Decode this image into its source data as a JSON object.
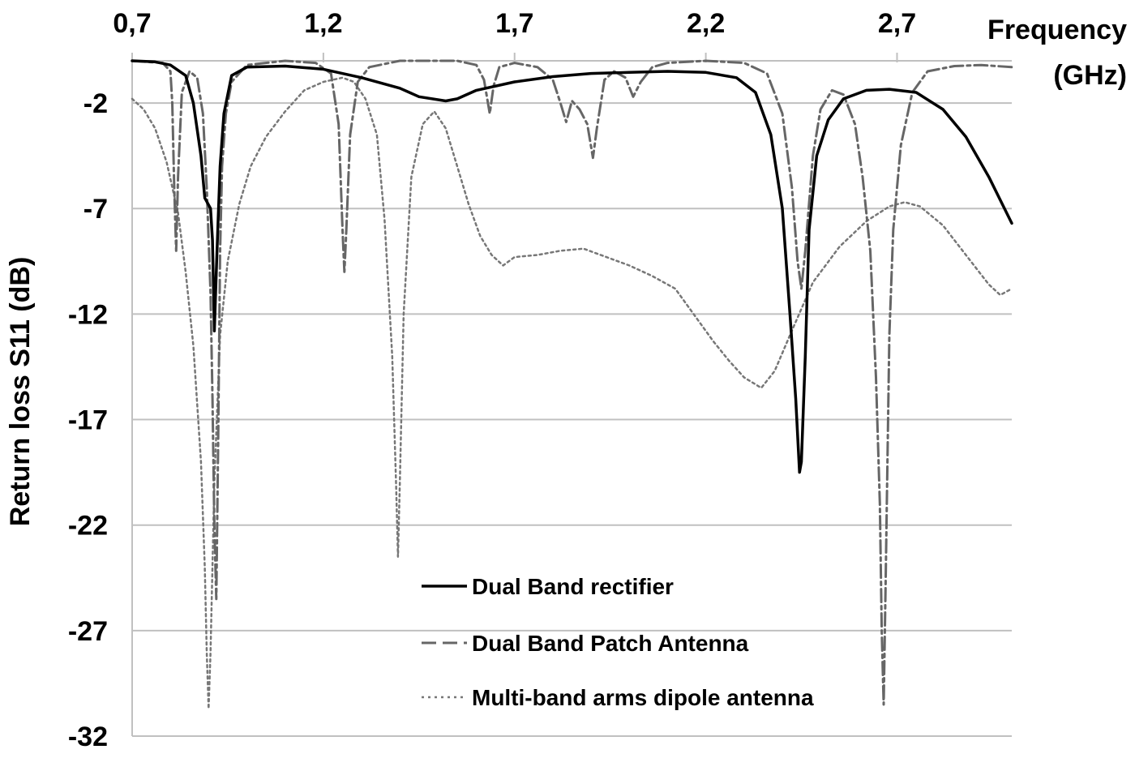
{
  "chart_data": {
    "type": "line",
    "xlabel": [
      "Frequency",
      "(GHz)"
    ],
    "ylabel": "Return loss S11 (dB)",
    "xlim": [
      0.7,
      3.0
    ],
    "ylim": [
      -32,
      0
    ],
    "x_ticks": [
      0.7,
      1.2,
      1.7,
      2.2,
      2.7
    ],
    "x_tick_labels": [
      "0,7",
      "1,2",
      "1,7",
      "2,2",
      "2,7"
    ],
    "y_ticks": [
      -2,
      -7,
      -12,
      -17,
      -22,
      -27,
      -32
    ],
    "y_tick_labels": [
      "-2",
      "-7",
      "-12",
      "-17",
      "-22",
      "-27",
      "-32"
    ],
    "x_axis_position": "top",
    "grid": "horizontal",
    "legend_position": "bottom-center",
    "colors": {
      "rectifier": "#000000",
      "patch": "#666666",
      "dipole": "#777777",
      "grid": "#c0c0c0"
    },
    "series": [
      {
        "name": "Dual Band rectifier",
        "style": "solid",
        "points": [
          [
            0.7,
            0
          ],
          [
            0.76,
            -0.05
          ],
          [
            0.8,
            -0.2
          ],
          [
            0.84,
            -0.7
          ],
          [
            0.86,
            -2.0
          ],
          [
            0.88,
            -4.5
          ],
          [
            0.89,
            -6.5
          ],
          [
            0.905,
            -7.0
          ],
          [
            0.91,
            -8.5
          ],
          [
            0.915,
            -12.8
          ],
          [
            0.92,
            -10
          ],
          [
            0.925,
            -7.5
          ],
          [
            0.93,
            -5
          ],
          [
            0.94,
            -2.5
          ],
          [
            0.96,
            -0.7
          ],
          [
            1.0,
            -0.3
          ],
          [
            1.1,
            -0.25
          ],
          [
            1.2,
            -0.4
          ],
          [
            1.3,
            -0.8
          ],
          [
            1.4,
            -1.3
          ],
          [
            1.45,
            -1.7
          ],
          [
            1.52,
            -1.9
          ],
          [
            1.55,
            -1.8
          ],
          [
            1.6,
            -1.4
          ],
          [
            1.7,
            -1.0
          ],
          [
            1.8,
            -0.75
          ],
          [
            1.9,
            -0.6
          ],
          [
            2.0,
            -0.55
          ],
          [
            2.1,
            -0.5
          ],
          [
            2.2,
            -0.55
          ],
          [
            2.28,
            -0.8
          ],
          [
            2.33,
            -1.5
          ],
          [
            2.37,
            -3.5
          ],
          [
            2.4,
            -7
          ],
          [
            2.42,
            -12
          ],
          [
            2.435,
            -16
          ],
          [
            2.445,
            -19.5
          ],
          [
            2.45,
            -19
          ],
          [
            2.46,
            -14
          ],
          [
            2.47,
            -8
          ],
          [
            2.49,
            -4.5
          ],
          [
            2.52,
            -2.8
          ],
          [
            2.56,
            -1.8
          ],
          [
            2.62,
            -1.4
          ],
          [
            2.68,
            -1.35
          ],
          [
            2.75,
            -1.5
          ],
          [
            2.82,
            -2.3
          ],
          [
            2.88,
            -3.6
          ],
          [
            2.94,
            -5.5
          ],
          [
            3.0,
            -7.7
          ]
        ]
      },
      {
        "name": "Dual Band Patch Antenna",
        "style": "dash-dot",
        "points": [
          [
            0.7,
            0
          ],
          [
            0.78,
            -0.1
          ],
          [
            0.8,
            -0.5
          ],
          [
            0.805,
            -2
          ],
          [
            0.81,
            -6
          ],
          [
            0.815,
            -9
          ],
          [
            0.82,
            -5.5
          ],
          [
            0.83,
            -1.5
          ],
          [
            0.85,
            -0.5
          ],
          [
            0.87,
            -0.8
          ],
          [
            0.885,
            -2.5
          ],
          [
            0.895,
            -6
          ],
          [
            0.905,
            -11
          ],
          [
            0.91,
            -16
          ],
          [
            0.915,
            -22
          ],
          [
            0.92,
            -25.5
          ],
          [
            0.925,
            -18
          ],
          [
            0.93,
            -9
          ],
          [
            0.935,
            -5
          ],
          [
            0.945,
            -2.5
          ],
          [
            0.96,
            -1
          ],
          [
            1.0,
            -0.2
          ],
          [
            1.1,
            0
          ],
          [
            1.18,
            -0.1
          ],
          [
            1.22,
            -0.6
          ],
          [
            1.24,
            -3
          ],
          [
            1.25,
            -8
          ],
          [
            1.255,
            -10
          ],
          [
            1.26,
            -8
          ],
          [
            1.27,
            -3.5
          ],
          [
            1.29,
            -1
          ],
          [
            1.32,
            -0.3
          ],
          [
            1.4,
            0
          ],
          [
            1.55,
            0
          ],
          [
            1.6,
            -0.2
          ],
          [
            1.62,
            -0.9
          ],
          [
            1.635,
            -2.5
          ],
          [
            1.645,
            -1.2
          ],
          [
            1.66,
            -0.3
          ],
          [
            1.7,
            -0.1
          ],
          [
            1.76,
            -0.3
          ],
          [
            1.8,
            -0.9
          ],
          [
            1.82,
            -2
          ],
          [
            1.835,
            -2.9
          ],
          [
            1.85,
            -1.9
          ],
          [
            1.87,
            -2.3
          ],
          [
            1.89,
            -3.0
          ],
          [
            1.905,
            -4.6
          ],
          [
            1.915,
            -3.2
          ],
          [
            1.935,
            -0.9
          ],
          [
            1.96,
            -0.5
          ],
          [
            1.99,
            -0.8
          ],
          [
            2.01,
            -1.7
          ],
          [
            2.03,
            -1.0
          ],
          [
            2.06,
            -0.3
          ],
          [
            2.1,
            -0.1
          ],
          [
            2.2,
            0
          ],
          [
            2.3,
            -0.1
          ],
          [
            2.36,
            -0.6
          ],
          [
            2.4,
            -2.5
          ],
          [
            2.425,
            -6
          ],
          [
            2.44,
            -9.5
          ],
          [
            2.45,
            -10.8
          ],
          [
            2.46,
            -9
          ],
          [
            2.48,
            -4.5
          ],
          [
            2.5,
            -2.3
          ],
          [
            2.53,
            -1.4
          ],
          [
            2.56,
            -1.6
          ],
          [
            2.59,
            -3
          ],
          [
            2.61,
            -5.5
          ],
          [
            2.63,
            -9
          ],
          [
            2.645,
            -15
          ],
          [
            2.655,
            -21
          ],
          [
            2.66,
            -27
          ],
          [
            2.665,
            -30.5
          ],
          [
            2.67,
            -25
          ],
          [
            2.68,
            -13
          ],
          [
            2.69,
            -8
          ],
          [
            2.71,
            -4
          ],
          [
            2.74,
            -1.5
          ],
          [
            2.78,
            -0.5
          ],
          [
            2.85,
            -0.25
          ],
          [
            2.92,
            -0.2
          ],
          [
            3.0,
            -0.3
          ]
        ]
      },
      {
        "name": "Multi-band arms dipole antenna",
        "style": "dotted",
        "points": [
          [
            0.7,
            -1.8
          ],
          [
            0.73,
            -2.3
          ],
          [
            0.76,
            -3.2
          ],
          [
            0.79,
            -4.8
          ],
          [
            0.82,
            -7.2
          ],
          [
            0.84,
            -10
          ],
          [
            0.86,
            -13.5
          ],
          [
            0.88,
            -19
          ],
          [
            0.89,
            -24
          ],
          [
            0.895,
            -28
          ],
          [
            0.9,
            -30.7
          ],
          [
            0.905,
            -28
          ],
          [
            0.915,
            -20
          ],
          [
            0.93,
            -13
          ],
          [
            0.95,
            -9.5
          ],
          [
            0.98,
            -6.8
          ],
          [
            1.01,
            -5
          ],
          [
            1.05,
            -3.6
          ],
          [
            1.1,
            -2.4
          ],
          [
            1.15,
            -1.4
          ],
          [
            1.2,
            -1.0
          ],
          [
            1.25,
            -0.8
          ],
          [
            1.28,
            -1.0
          ],
          [
            1.31,
            -1.8
          ],
          [
            1.34,
            -3.5
          ],
          [
            1.36,
            -7.5
          ],
          [
            1.38,
            -14
          ],
          [
            1.39,
            -20
          ],
          [
            1.395,
            -23.5
          ],
          [
            1.4,
            -20
          ],
          [
            1.41,
            -12
          ],
          [
            1.43,
            -5.5
          ],
          [
            1.46,
            -3
          ],
          [
            1.49,
            -2.4
          ],
          [
            1.52,
            -3.2
          ],
          [
            1.55,
            -5
          ],
          [
            1.58,
            -6.8
          ],
          [
            1.61,
            -8.3
          ],
          [
            1.64,
            -9.2
          ],
          [
            1.67,
            -9.7
          ],
          [
            1.7,
            -9.3
          ],
          [
            1.76,
            -9.2
          ],
          [
            1.82,
            -9.0
          ],
          [
            1.88,
            -8.9
          ],
          [
            1.94,
            -9.3
          ],
          [
            2.0,
            -9.7
          ],
          [
            2.06,
            -10.2
          ],
          [
            2.12,
            -10.8
          ],
          [
            2.18,
            -12.3
          ],
          [
            2.22,
            -13.3
          ],
          [
            2.26,
            -14.2
          ],
          [
            2.3,
            -15.0
          ],
          [
            2.345,
            -15.5
          ],
          [
            2.38,
            -14.7
          ],
          [
            2.42,
            -13.0
          ],
          [
            2.48,
            -10.5
          ],
          [
            2.55,
            -8.8
          ],
          [
            2.62,
            -7.6
          ],
          [
            2.68,
            -6.9
          ],
          [
            2.72,
            -6.7
          ],
          [
            2.76,
            -6.9
          ],
          [
            2.82,
            -7.8
          ],
          [
            2.88,
            -9.2
          ],
          [
            2.94,
            -10.6
          ],
          [
            2.97,
            -11.1
          ],
          [
            3.0,
            -10.8
          ]
        ]
      }
    ]
  }
}
